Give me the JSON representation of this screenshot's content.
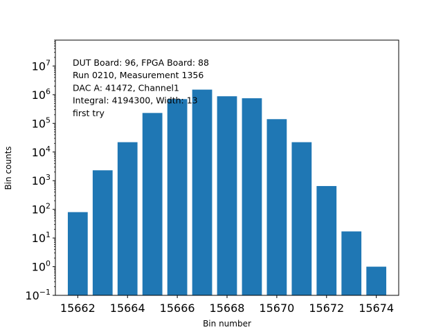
{
  "chart_data": {
    "type": "bar",
    "x": [
      15662,
      15663,
      15664,
      15665,
      15666,
      15667,
      15668,
      15669,
      15670,
      15671,
      15672,
      15673,
      15674
    ],
    "values": [
      80,
      2300,
      22000,
      230000,
      700000,
      1500000,
      880000,
      750000,
      140000,
      22000,
      650,
      17,
      1
    ],
    "bar_color": "#1f77b4",
    "xlabel": "Bin number",
    "ylabel": "Bin counts",
    "xlim": [
      15661.1,
      15674.9
    ],
    "ylim": [
      0.1,
      80000000
    ],
    "yscale": "log",
    "grid": false,
    "xticks": [
      {
        "value": 15662,
        "label": "15662"
      },
      {
        "value": 15664,
        "label": "15664"
      },
      {
        "value": 15666,
        "label": "15666"
      },
      {
        "value": 15668,
        "label": "15668"
      },
      {
        "value": 15670,
        "label": "15670"
      },
      {
        "value": 15672,
        "label": "15672"
      },
      {
        "value": 15674,
        "label": "15674"
      }
    ],
    "yticks": [
      {
        "exp": -1,
        "base": "10",
        "sup": "−1"
      },
      {
        "exp": 0,
        "base": "10",
        "sup": "0"
      },
      {
        "exp": 1,
        "base": "10",
        "sup": "1"
      },
      {
        "exp": 2,
        "base": "10",
        "sup": "2"
      },
      {
        "exp": 3,
        "base": "10",
        "sup": "3"
      },
      {
        "exp": 4,
        "base": "10",
        "sup": "4"
      },
      {
        "exp": 5,
        "base": "10",
        "sup": "5"
      },
      {
        "exp": 6,
        "base": "10",
        "sup": "6"
      },
      {
        "exp": 7,
        "base": "10",
        "sup": "7"
      }
    ],
    "annotations": [
      "DUT Board: 96, FPGA Board: 88",
      "Run 0210, Measurement 1356",
      "DAC A: 41472, Channel1",
      "Integral: 4194300, Width: 13",
      "first try"
    ]
  }
}
